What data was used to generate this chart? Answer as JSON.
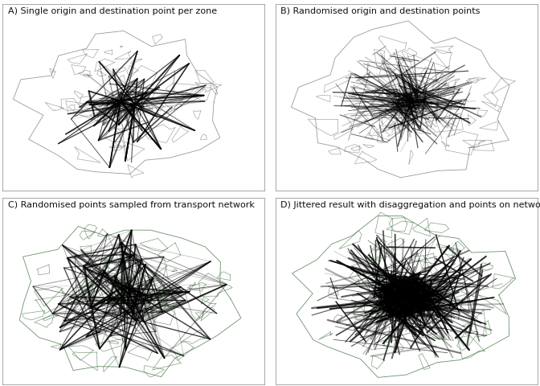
{
  "titles": [
    "A) Single origin and destination point per zone",
    "B) Randomised origin and destination points",
    "C) Randomised points sampled from transport network",
    "D) Jittered result with disaggregation and points on network"
  ],
  "background_color": "#ffffff",
  "panel_bg": "#ffffff",
  "zone_color_ab": "#777777",
  "zone_color_cd": "#3a6b3a",
  "line_color": "#000000",
  "title_fontsize": 8,
  "fig_width": 6.72,
  "fig_height": 4.8,
  "n_lines_a": 200,
  "n_lines_b": 250,
  "n_lines_c": 280,
  "n_lines_d": 500
}
